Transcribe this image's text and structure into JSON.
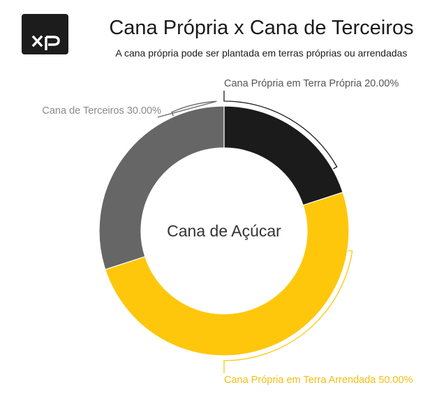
{
  "header": {
    "title": "Cana Própria x Cana de Terceiros",
    "subtitle": "A cana própria pode ser plantada em terras próprias ou arrendadas"
  },
  "logo": {
    "text": "XP",
    "icon": "xp-logo"
  },
  "colors": {
    "black": "#1b1b1b",
    "yellow": "#fec70b",
    "gray": "#666666",
    "label_gray": "#8a8a8a",
    "logo_bg": "#1c1c1c"
  },
  "chart_data": {
    "type": "pie",
    "donut": true,
    "center_label": "Cana de Açúcar",
    "slices": [
      {
        "label": "Cana Própria em Terra Própria 20.00%",
        "value": 20.0,
        "color": "#1b1b1b",
        "label_color": "#555555"
      },
      {
        "label": "Cana Própria em Terra Arrendada 50.00%",
        "value": 50.0,
        "color": "#fec70b",
        "label_color": "#f2bf12"
      },
      {
        "label": "Cana de Terceiros 30.00%",
        "value": 30.0,
        "color": "#666666",
        "label_color": "#8a8a8a"
      }
    ]
  }
}
